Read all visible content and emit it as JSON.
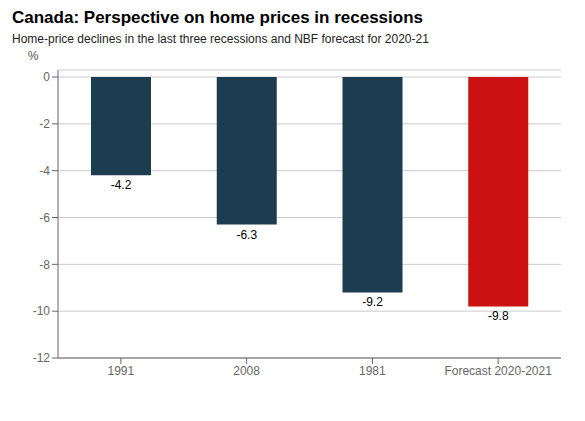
{
  "chart_data": {
    "type": "bar",
    "title": "Canada: Perspective on home prices in recessions",
    "subtitle": "Home-price declines in the last three recessions and NBF forecast for 2020-21",
    "ylabel": "%",
    "categories": [
      "1991",
      "2008",
      "1981",
      "Forecast 2020-2021"
    ],
    "values": [
      -4.2,
      -6.3,
      -9.2,
      -9.8
    ],
    "colors": [
      "#1c3d50",
      "#1c3d50",
      "#1c3d50",
      "#cc1111"
    ],
    "ylim": [
      -12,
      0.3
    ],
    "yticks": [
      0,
      -2,
      -4,
      -6,
      -8,
      -10,
      -12
    ],
    "grid": true,
    "data_labels": true
  }
}
